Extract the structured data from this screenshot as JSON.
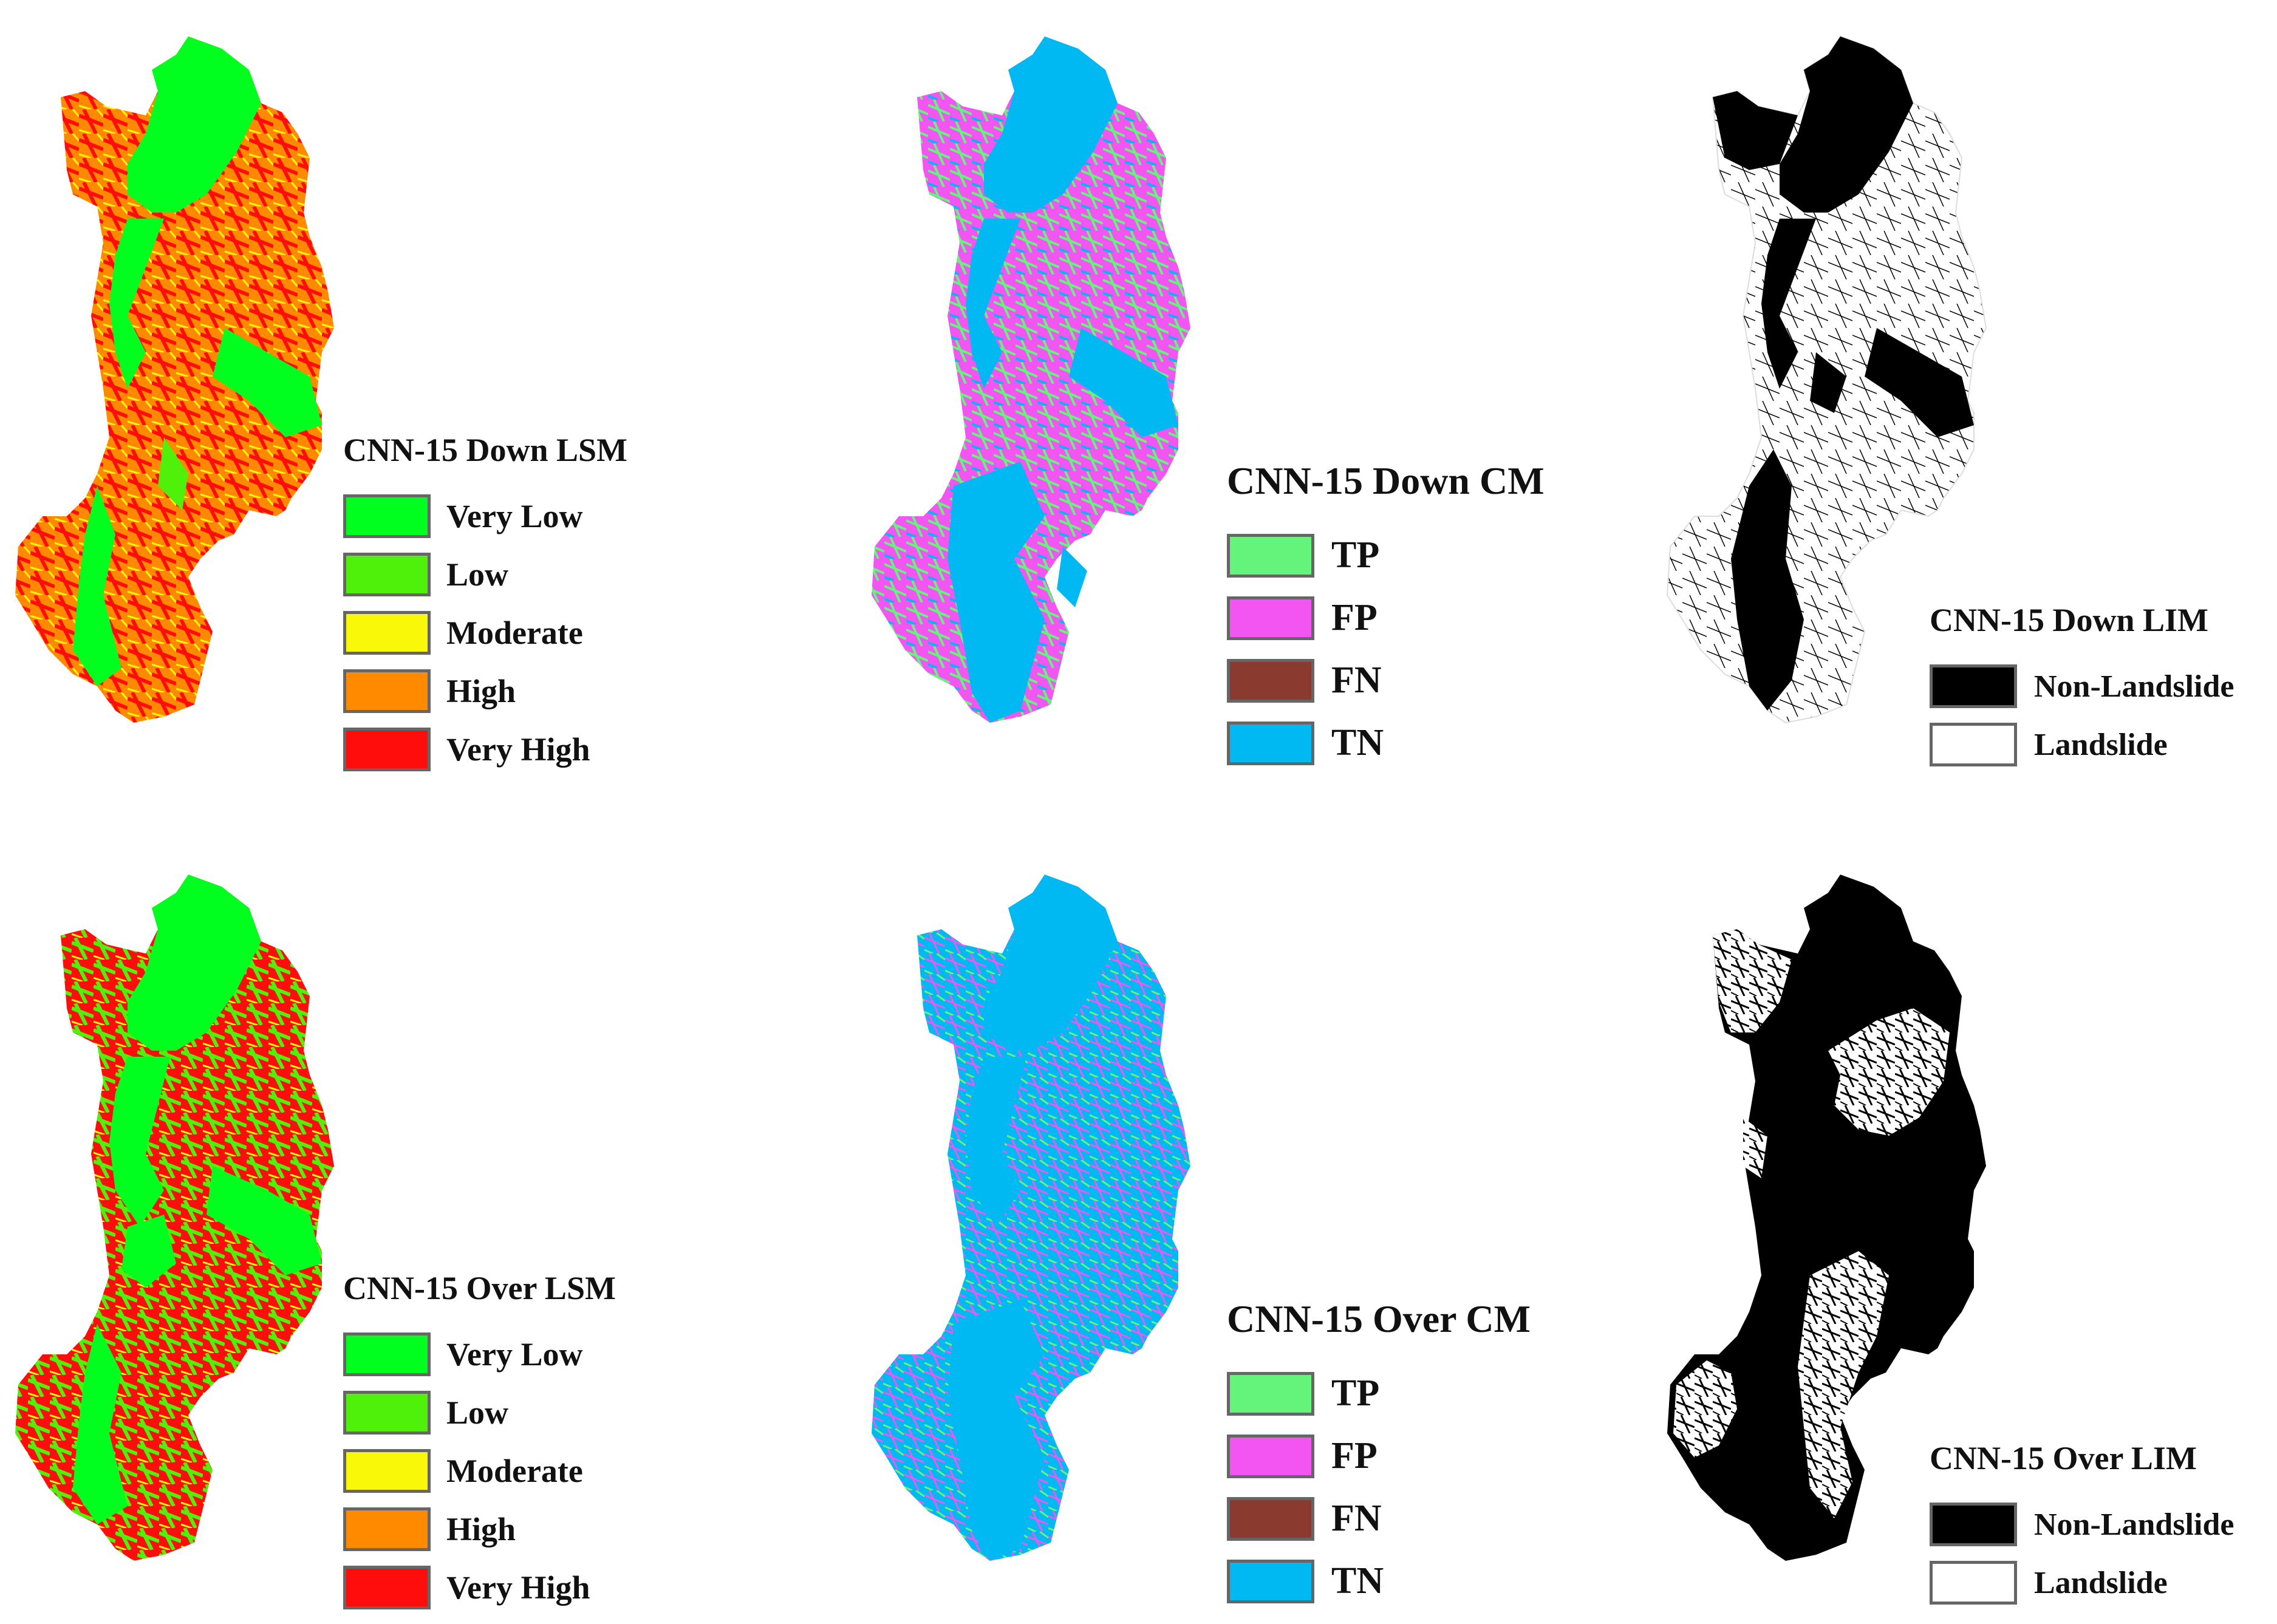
{
  "colors": {
    "very_low": "#00ff1e",
    "low": "#4ff00a",
    "moderate": "#f8f808",
    "high": "#ff8a00",
    "very_high": "#ff0d0d",
    "tp": "#64f47c",
    "fp": "#f355f3",
    "fn": "#8a3a2e",
    "tn": "#00b9f2",
    "non_landslide": "#000000",
    "landslide": "#ffffff"
  },
  "panels": {
    "down_lsm": {
      "title": "CNN-15 Down LSM",
      "items": [
        {
          "label": "Very Low",
          "color": "#00ff1e"
        },
        {
          "label": "Low",
          "color": "#4ff00a"
        },
        {
          "label": "Moderate",
          "color": "#f8f808"
        },
        {
          "label": "High",
          "color": "#ff8a00"
        },
        {
          "label": "Very High",
          "color": "#ff0d0d"
        }
      ]
    },
    "down_cm": {
      "title": "CNN-15 Down CM",
      "items": [
        {
          "label": "TP",
          "color": "#64f47c"
        },
        {
          "label": "FP",
          "color": "#f355f3"
        },
        {
          "label": "FN",
          "color": "#8a3a2e"
        },
        {
          "label": "TN",
          "color": "#00b9f2"
        }
      ]
    },
    "down_lim": {
      "title": "CNN-15 Down LIM",
      "items": [
        {
          "label": "Non-Landslide",
          "color": "#000000"
        },
        {
          "label": "Landslide",
          "color": "#ffffff"
        }
      ]
    },
    "over_lsm": {
      "title": "CNN-15 Over LSM",
      "items": [
        {
          "label": "Very Low",
          "color": "#00ff1e"
        },
        {
          "label": "Low",
          "color": "#4ff00a"
        },
        {
          "label": "Moderate",
          "color": "#f8f808"
        },
        {
          "label": "High",
          "color": "#ff8a00"
        },
        {
          "label": "Very High",
          "color": "#ff0d0d"
        }
      ]
    },
    "over_cm": {
      "title": "CNN-15 Over CM",
      "items": [
        {
          "label": "TP",
          "color": "#64f47c"
        },
        {
          "label": "FP",
          "color": "#f355f3"
        },
        {
          "label": "FN",
          "color": "#8a3a2e"
        },
        {
          "label": "TN",
          "color": "#00b9f2"
        }
      ]
    },
    "over_lim": {
      "title": "CNN-15 Over LIM",
      "items": [
        {
          "label": "Non-Landslide",
          "color": "#000000"
        },
        {
          "label": "Landslide",
          "color": "#ffffff"
        }
      ]
    }
  }
}
